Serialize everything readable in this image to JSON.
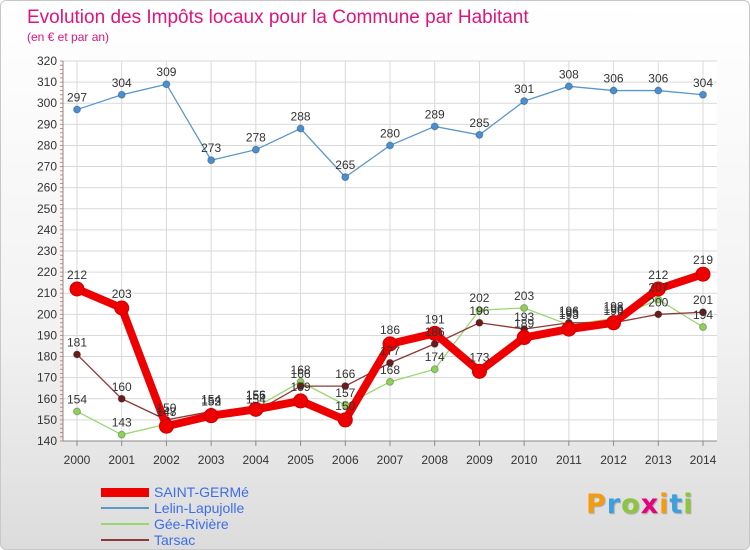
{
  "header": {
    "title": "Evolution des Impôts locaux pour la Commune par Habitant",
    "subtitle": "(en € et par an)"
  },
  "logo": {
    "letters": [
      "P",
      "r",
      "o",
      "x",
      "i",
      "t",
      "i"
    ],
    "colors": [
      "#f39c12",
      "#3aa0e0",
      "#8cc63f",
      "#e6007e",
      "#f39c12",
      "#3aa0e0",
      "#8cc63f"
    ]
  },
  "chart_data": {
    "type": "line",
    "title": "Evolution des Impôts locaux pour la Commune par Habitant",
    "subtitle": "(en € et par an)",
    "xlabel": "",
    "ylabel": "",
    "ylim": [
      140,
      320
    ],
    "ytick_step": 10,
    "grid": true,
    "legend_position": "bottom-left",
    "x": [
      "2000",
      "2001",
      "2002",
      "2003",
      "2004",
      "2005",
      "2006",
      "2007",
      "2008",
      "2009",
      "2010",
      "2011",
      "2012",
      "2013",
      "2014"
    ],
    "series": [
      {
        "name": "Lelin-Lapujolle",
        "color": "#4a8fd0",
        "line_color": "#5b96cc",
        "values": [
          297,
          304,
          309,
          273,
          278,
          288,
          265,
          280,
          289,
          285,
          301,
          308,
          306,
          306,
          304
        ],
        "labels": [
          "297",
          "304",
          "309",
          "273",
          "278",
          "288",
          "265",
          "280",
          "289",
          "285",
          "301",
          "308",
          "306",
          "306",
          "304"
        ]
      },
      {
        "name": "Gée-Rivière",
        "color": "#8fd05a",
        "line_color": "#9bd672",
        "values": [
          154,
          143,
          148,
          153,
          156,
          168,
          157,
          168,
          174,
          202,
          203,
          195,
          198,
          207,
          194
        ],
        "labels": [
          "154",
          "143",
          "148",
          "153",
          "156",
          "168",
          "157",
          "168",
          "174",
          "202",
          "203",
          "195",
          "198",
          "207",
          "194"
        ]
      },
      {
        "name": "Tarsac",
        "color": "#6a1c1c",
        "line_color": "#8b3a3a",
        "values": [
          181,
          160,
          150,
          154,
          154,
          166,
          166,
          177,
          186,
          196,
          193,
          196,
          196,
          200,
          201
        ],
        "labels": [
          "181",
          "160",
          "150",
          "154",
          "154",
          "166",
          "166",
          "177",
          "186",
          "196",
          "193",
          "196",
          "196",
          "200",
          "201"
        ]
      },
      {
        "name": "SAINT-GERMé",
        "color": "#ee0000",
        "line_color": "#ee0000",
        "bold": true,
        "values": [
          212,
          203,
          147,
          152,
          155,
          159,
          150,
          186,
          191,
          173,
          189,
          193,
          196,
          212,
          219
        ],
        "labels": [
          "212",
          "203",
          "147",
          "152",
          "155",
          "159",
          "150",
          "186",
          "191",
          "173",
          "189",
          "193",
          "196",
          "212",
          "219"
        ]
      }
    ],
    "legend_order": [
      "SAINT-GERMé",
      "Lelin-Lapujolle",
      "Gée-Rivière",
      "Tarsac"
    ]
  }
}
